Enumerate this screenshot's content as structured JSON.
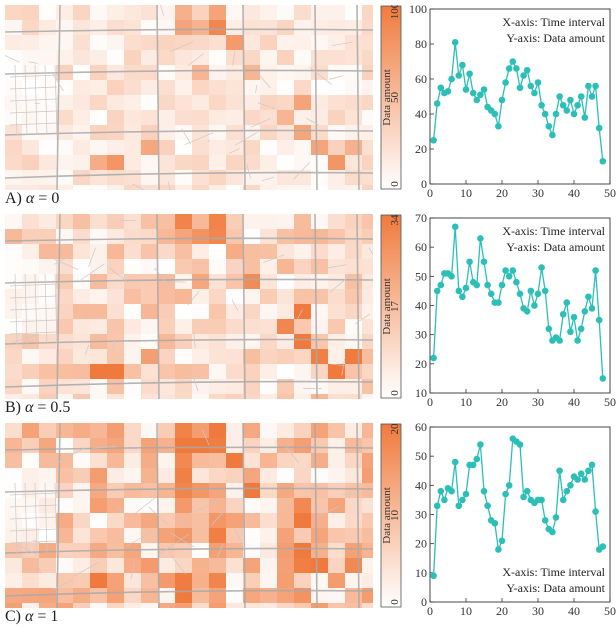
{
  "rows": [
    {
      "caption_prefix": "A)",
      "caption_alpha": "α",
      "caption_value": " = 0",
      "colorbar": {
        "label": "Data amount",
        "ticks": [
          "0",
          "50",
          "100"
        ],
        "max": 100,
        "color_max": "#f07a3d",
        "color_min": "#ffffff"
      },
      "heat_intensity": 0.35
    },
    {
      "caption_prefix": "B)",
      "caption_alpha": "α",
      "caption_value": " = 0.5",
      "colorbar": {
        "label": "Data amount",
        "ticks": [
          "0",
          "17",
          "34"
        ],
        "max": 34,
        "color_max": "#f07a3d",
        "color_min": "#ffffff"
      },
      "heat_intensity": 0.55
    },
    {
      "caption_prefix": "C)",
      "caption_alpha": "α",
      "caption_value": " = 1",
      "colorbar": {
        "label": "Data amount",
        "ticks": [
          "0",
          "10",
          "20"
        ],
        "max": 20,
        "color_max": "#f07a3d",
        "color_min": "#ffffff"
      },
      "heat_intensity": 0.75
    }
  ],
  "chart_data": [
    {
      "type": "line",
      "annotation_x": "X-axis: Time interval",
      "annotation_y": "Y-axis: Data amount",
      "annotation_position": "top-right",
      "xlim": [
        0,
        50
      ],
      "ylim": [
        0,
        100
      ],
      "xticks": [
        0,
        10,
        20,
        30,
        40,
        50
      ],
      "yticks": [
        0,
        20,
        40,
        60,
        80,
        100
      ],
      "color": "#2bbfb8",
      "x": [
        1,
        2,
        3,
        4,
        5,
        6,
        7,
        8,
        9,
        10,
        11,
        12,
        13,
        14,
        15,
        16,
        17,
        18,
        19,
        20,
        21,
        22,
        23,
        24,
        25,
        26,
        27,
        28,
        29,
        30,
        31,
        32,
        33,
        34,
        35,
        36,
        37,
        38,
        39,
        40,
        41,
        42,
        43,
        44,
        45,
        46,
        47,
        48
      ],
      "y": [
        25,
        46,
        55,
        52,
        53,
        60,
        81,
        62,
        68,
        54,
        63,
        52,
        48,
        51,
        54,
        44,
        42,
        40,
        33,
        48,
        58,
        66,
        70,
        66,
        55,
        62,
        65,
        56,
        52,
        58,
        45,
        40,
        33,
        28,
        40,
        50,
        45,
        42,
        48,
        40,
        45,
        50,
        38,
        56,
        50,
        56,
        32,
        13
      ]
    },
    {
      "type": "line",
      "annotation_x": "X-axis: Time interval",
      "annotation_y": "Y-axis: Data amount",
      "annotation_position": "top-right",
      "xlim": [
        0,
        50
      ],
      "ylim": [
        10,
        70
      ],
      "xticks": [
        0,
        10,
        20,
        30,
        40,
        50
      ],
      "yticks": [
        10,
        20,
        30,
        40,
        50,
        60,
        70
      ],
      "color": "#2bbfb8",
      "x": [
        1,
        2,
        3,
        4,
        5,
        6,
        7,
        8,
        9,
        10,
        11,
        12,
        13,
        14,
        15,
        16,
        17,
        18,
        19,
        20,
        21,
        22,
        23,
        24,
        25,
        26,
        27,
        28,
        29,
        30,
        31,
        32,
        33,
        34,
        35,
        36,
        37,
        38,
        39,
        40,
        41,
        42,
        43,
        44,
        45,
        46,
        47,
        48
      ],
      "y": [
        22,
        45,
        47,
        51,
        51,
        50,
        67,
        45,
        43,
        46,
        55,
        48,
        47,
        63,
        55,
        47,
        44,
        41,
        41,
        47,
        52,
        50,
        52,
        48,
        44,
        39,
        38,
        45,
        40,
        44,
        53,
        45,
        32,
        28,
        29,
        28,
        37,
        41,
        31,
        36,
        28,
        32,
        38,
        43,
        39,
        52,
        35,
        15
      ]
    },
    {
      "type": "line",
      "annotation_x": "X-axis: Time interval",
      "annotation_y": "Y-axis: Data amount",
      "annotation_position": "bottom-right",
      "xlim": [
        0,
        50
      ],
      "ylim": [
        0,
        60
      ],
      "xticks": [
        0,
        10,
        20,
        30,
        40,
        50
      ],
      "yticks": [
        0,
        10,
        20,
        30,
        40,
        50,
        60
      ],
      "color": "#2bbfb8",
      "x": [
        1,
        2,
        3,
        4,
        5,
        6,
        7,
        8,
        9,
        10,
        11,
        12,
        13,
        14,
        15,
        16,
        17,
        18,
        19,
        20,
        21,
        22,
        23,
        24,
        25,
        26,
        27,
        28,
        29,
        30,
        31,
        32,
        33,
        34,
        35,
        36,
        37,
        38,
        39,
        40,
        41,
        42,
        43,
        44,
        45,
        46,
        47,
        48
      ],
      "y": [
        9,
        33,
        38,
        35,
        39,
        38,
        48,
        33,
        35,
        37,
        47,
        47,
        49,
        54,
        38,
        33,
        28,
        27,
        18,
        21,
        37,
        40,
        56,
        55,
        54,
        36,
        38,
        35,
        34,
        35,
        35,
        28,
        25,
        24,
        29,
        45,
        35,
        38,
        40,
        43,
        42,
        44,
        42,
        45,
        47,
        31,
        18,
        19
      ]
    }
  ]
}
